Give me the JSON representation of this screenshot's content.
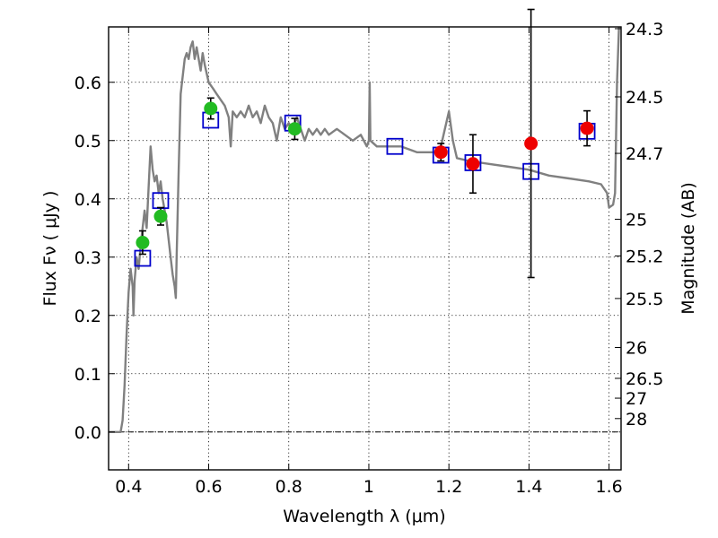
{
  "chart_data": {
    "type": "scatter",
    "title": "",
    "xlabel": "Wavelength  λ (μm)",
    "ylabel": "Flux  Fν  ( μJy )",
    "y2label": "Magnitude (AB)",
    "xlim": [
      0.35,
      1.63
    ],
    "ylim": [
      -0.065,
      0.695
    ],
    "grid": true,
    "legend": "none",
    "x_ticks": [
      0.4,
      0.6,
      0.8,
      1.0,
      1.2,
      1.4,
      1.6
    ],
    "x_tick_labels": [
      "0.4",
      "0.6",
      "0.8",
      "1",
      "1.2",
      "1.4",
      "1.6"
    ],
    "y_ticks": [
      0.0,
      0.1,
      0.2,
      0.3,
      0.4,
      0.5,
      0.6
    ],
    "y_tick_labels": [
      "0.0",
      "0.1",
      "0.2",
      "0.3",
      "0.4",
      "0.5",
      "0.6"
    ],
    "y2_ticks": [
      {
        "flux": 0.692,
        "label": "24.3"
      },
      {
        "flux": 0.575,
        "label": "24.5"
      },
      {
        "flux": 0.478,
        "label": "24.7"
      },
      {
        "flux": 0.365,
        "label": "25"
      },
      {
        "flux": 0.302,
        "label": "25.2"
      },
      {
        "flux": 0.229,
        "label": "25.5"
      },
      {
        "flux": 0.145,
        "label": "26"
      },
      {
        "flux": 0.092,
        "label": "26.5"
      },
      {
        "flux": 0.058,
        "label": "27"
      },
      {
        "flux": 0.023,
        "label": "28"
      }
    ],
    "colors": {
      "model": "#808080",
      "model_points": "#0000cc",
      "optical_obs": "#22bb22",
      "nir_obs": "#ee0000",
      "errorbar": "#000000"
    },
    "model_spectrum": {
      "name": "",
      "points": [
        [
          0.35,
          0.0
        ],
        [
          0.37,
          0.0
        ],
        [
          0.38,
          0.0
        ],
        [
          0.385,
          0.02
        ],
        [
          0.39,
          0.08
        ],
        [
          0.395,
          0.17
        ],
        [
          0.4,
          0.24
        ],
        [
          0.405,
          0.28
        ],
        [
          0.41,
          0.25
        ],
        [
          0.412,
          0.2
        ],
        [
          0.415,
          0.26
        ],
        [
          0.42,
          0.3
        ],
        [
          0.425,
          0.28
        ],
        [
          0.43,
          0.32
        ],
        [
          0.435,
          0.35
        ],
        [
          0.44,
          0.38
        ],
        [
          0.445,
          0.35
        ],
        [
          0.45,
          0.42
        ],
        [
          0.455,
          0.49
        ],
        [
          0.46,
          0.45
        ],
        [
          0.465,
          0.43
        ],
        [
          0.47,
          0.44
        ],
        [
          0.475,
          0.41
        ],
        [
          0.48,
          0.43
        ],
        [
          0.485,
          0.4
        ],
        [
          0.49,
          0.38
        ],
        [
          0.495,
          0.36
        ],
        [
          0.5,
          0.33
        ],
        [
          0.505,
          0.3
        ],
        [
          0.51,
          0.27
        ],
        [
          0.515,
          0.25
        ],
        [
          0.518,
          0.23
        ],
        [
          0.52,
          0.3
        ],
        [
          0.525,
          0.45
        ],
        [
          0.53,
          0.58
        ],
        [
          0.54,
          0.64
        ],
        [
          0.545,
          0.65
        ],
        [
          0.55,
          0.64
        ],
        [
          0.555,
          0.66
        ],
        [
          0.56,
          0.67
        ],
        [
          0.565,
          0.64
        ],
        [
          0.57,
          0.66
        ],
        [
          0.58,
          0.62
        ],
        [
          0.585,
          0.65
        ],
        [
          0.59,
          0.63
        ],
        [
          0.6,
          0.6
        ],
        [
          0.61,
          0.59
        ],
        [
          0.62,
          0.58
        ],
        [
          0.63,
          0.57
        ],
        [
          0.64,
          0.56
        ],
        [
          0.65,
          0.54
        ],
        [
          0.655,
          0.49
        ],
        [
          0.66,
          0.55
        ],
        [
          0.67,
          0.54
        ],
        [
          0.68,
          0.55
        ],
        [
          0.69,
          0.54
        ],
        [
          0.7,
          0.56
        ],
        [
          0.71,
          0.54
        ],
        [
          0.72,
          0.55
        ],
        [
          0.73,
          0.53
        ],
        [
          0.74,
          0.56
        ],
        [
          0.75,
          0.54
        ],
        [
          0.76,
          0.53
        ],
        [
          0.77,
          0.5
        ],
        [
          0.78,
          0.54
        ],
        [
          0.79,
          0.52
        ],
        [
          0.8,
          0.53
        ],
        [
          0.81,
          0.52
        ],
        [
          0.82,
          0.54
        ],
        [
          0.83,
          0.52
        ],
        [
          0.84,
          0.5
        ],
        [
          0.85,
          0.52
        ],
        [
          0.86,
          0.51
        ],
        [
          0.87,
          0.52
        ],
        [
          0.88,
          0.51
        ],
        [
          0.89,
          0.52
        ],
        [
          0.9,
          0.51
        ],
        [
          0.92,
          0.52
        ],
        [
          0.94,
          0.51
        ],
        [
          0.96,
          0.5
        ],
        [
          0.98,
          0.51
        ],
        [
          0.995,
          0.49
        ],
        [
          1.0,
          0.5
        ],
        [
          1.002,
          0.6
        ],
        [
          1.004,
          0.5
        ],
        [
          1.02,
          0.49
        ],
        [
          1.05,
          0.49
        ],
        [
          1.08,
          0.49
        ],
        [
          1.1,
          0.485
        ],
        [
          1.12,
          0.48
        ],
        [
          1.14,
          0.48
        ],
        [
          1.16,
          0.48
        ],
        [
          1.17,
          0.48
        ],
        [
          1.18,
          0.49
        ],
        [
          1.19,
          0.52
        ],
        [
          1.2,
          0.55
        ],
        [
          1.21,
          0.5
        ],
        [
          1.22,
          0.47
        ],
        [
          1.25,
          0.465
        ],
        [
          1.3,
          0.46
        ],
        [
          1.35,
          0.455
        ],
        [
          1.4,
          0.45
        ],
        [
          1.45,
          0.44
        ],
        [
          1.5,
          0.435
        ],
        [
          1.55,
          0.43
        ],
        [
          1.58,
          0.425
        ],
        [
          1.595,
          0.41
        ],
        [
          1.6,
          0.385
        ],
        [
          1.61,
          0.39
        ],
        [
          1.615,
          0.41
        ],
        [
          1.62,
          0.6
        ],
        [
          1.625,
          0.7
        ]
      ]
    },
    "model_points": [
      {
        "x": 0.435,
        "y": 0.298
      },
      {
        "x": 0.48,
        "y": 0.397
      },
      {
        "x": 0.605,
        "y": 0.535
      },
      {
        "x": 0.81,
        "y": 0.53
      },
      {
        "x": 1.065,
        "y": 0.49
      },
      {
        "x": 1.18,
        "y": 0.475
      },
      {
        "x": 1.26,
        "y": 0.462
      },
      {
        "x": 1.405,
        "y": 0.447
      },
      {
        "x": 1.545,
        "y": 0.516
      }
    ],
    "series": [
      {
        "name": "",
        "color_key": "optical_obs",
        "points": [
          {
            "x": 0.435,
            "y": 0.325,
            "err": 0.02
          },
          {
            "x": 0.48,
            "y": 0.37,
            "err": 0.015
          },
          {
            "x": 0.605,
            "y": 0.555,
            "err": 0.018
          },
          {
            "x": 0.815,
            "y": 0.52,
            "err": 0.018
          }
        ]
      },
      {
        "name": "",
        "color_key": "nir_obs",
        "points": [
          {
            "x": 1.18,
            "y": 0.48,
            "err": 0.015
          },
          {
            "x": 1.26,
            "y": 0.46,
            "err": 0.05
          },
          {
            "x": 1.405,
            "y": 0.495,
            "err": 0.23
          },
          {
            "x": 1.545,
            "y": 0.521,
            "err": 0.03
          }
        ]
      }
    ]
  }
}
